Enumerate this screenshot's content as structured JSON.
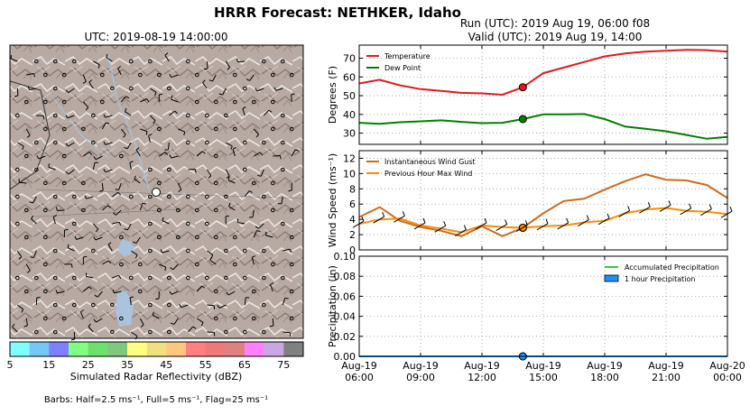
{
  "header": {
    "title": "HRRR Forecast: NETHKER, Idaho",
    "run_line": "Run (UTC): 2019 Aug 19, 06:00 f08",
    "valid_line": "Valid (UTC): 2019 Aug 19, 14:00"
  },
  "map": {
    "title": "UTC: 2019-08-19 14:00:00",
    "colorbar": {
      "label": "Simulated Radar Reflectivity (dBZ)",
      "ticks": [
        "5",
        "15",
        "25",
        "35",
        "45",
        "55",
        "65",
        "75"
      ],
      "colors": [
        "#80ffff",
        "#75c8f5",
        "#8080ff",
        "#80ff80",
        "#6ce26c",
        "#80c880",
        "#ffff80",
        "#f0e080",
        "#ffc880",
        "#ff8080",
        "#f07878",
        "#e08080",
        "#ff80ff",
        "#c8a8e0",
        "#808080"
      ]
    },
    "barbs_note": "Barbs: Half=2.5 ms⁻¹, Full=5 ms⁻¹, Flag=25 ms⁻¹"
  },
  "chart_data": [
    {
      "type": "line",
      "ylabel": "Degrees (F)",
      "ylim": [
        24,
        77
      ],
      "yticks": [
        30,
        40,
        50,
        60,
        70
      ],
      "grid": true,
      "legend": "top-left",
      "x_hours": [
        0,
        1,
        2,
        3,
        4,
        5,
        6,
        7,
        8,
        9,
        10,
        11,
        12,
        13,
        14,
        15,
        16,
        17,
        18
      ],
      "series": [
        {
          "name": "Temperature",
          "color": "#e31a1c",
          "values": [
            56.5,
            58.5,
            55.5,
            53.5,
            52.5,
            51.5,
            51.2,
            50.5,
            54.5,
            62,
            65,
            68,
            71,
            72.5,
            73.5,
            74,
            74.5,
            74.3,
            73.5
          ]
        },
        {
          "name": "Dew Point",
          "color": "#008000",
          "values": [
            35.5,
            35,
            35.8,
            36.3,
            36.8,
            36,
            35.3,
            35.5,
            37.5,
            40,
            40,
            40.2,
            37.5,
            33.5,
            32.3,
            31,
            29,
            27,
            28
          ]
        }
      ],
      "marker": {
        "x_hour": 8
      }
    },
    {
      "type": "line",
      "ylabel": "Wind Speed (ms⁻¹)",
      "ylim": [
        0,
        13
      ],
      "yticks": [
        0,
        2,
        4,
        6,
        8,
        10,
        12
      ],
      "grid": true,
      "legend": "top-left",
      "x_hours": [
        0,
        1,
        2,
        3,
        4,
        5,
        6,
        7,
        8,
        9,
        10,
        11,
        12,
        13,
        14,
        15,
        16,
        17,
        18
      ],
      "series": [
        {
          "name": "Instantaneous Wind Gust",
          "color": "#d2691e",
          "values": [
            4.3,
            5.6,
            3.8,
            3,
            2.5,
            1.8,
            3.1,
            1.8,
            2.9,
            4.8,
            6.4,
            6.7,
            7.9,
            9,
            9.9,
            9.2,
            9.1,
            8.5,
            6.8
          ]
        },
        {
          "name": "Previous Hour Max Wind",
          "color": "#ff8c00",
          "values": [
            3.4,
            4,
            4.1,
            3.2,
            2.8,
            2.3,
            3.2,
            3,
            2.9,
            3.1,
            3.2,
            3.6,
            3.8,
            4.8,
            5.3,
            5.5,
            5.1,
            5,
            4.7
          ]
        }
      ],
      "marker": {
        "x_hour": 8
      }
    },
    {
      "type": "area",
      "ylabel": "Precipitation (in)",
      "ylim": [
        0,
        0.1
      ],
      "yticks": [
        "0.00",
        "0.02",
        "0.04",
        "0.06",
        "0.08",
        "0.10"
      ],
      "grid": true,
      "legend": "top-right",
      "x_hours": [
        0,
        1,
        2,
        3,
        4,
        5,
        6,
        7,
        8,
        9,
        10,
        11,
        12,
        13,
        14,
        15,
        16,
        17,
        18
      ],
      "series": [
        {
          "name": "Accumulated Precipitation",
          "color": "#32cd32",
          "values": [
            0,
            0,
            0,
            0,
            0,
            0,
            0,
            0,
            0,
            0,
            0,
            0,
            0,
            0,
            0,
            0,
            0,
            0,
            0
          ]
        },
        {
          "name": "1 hour Precipitation",
          "color": "#1e90ff",
          "values": [
            0,
            0,
            0,
            0,
            0,
            0,
            0,
            0,
            0,
            0,
            0,
            0,
            0,
            0,
            0,
            0,
            0,
            0,
            0
          ]
        }
      ],
      "marker": {
        "x_hour": 8
      }
    }
  ],
  "xaxis": {
    "tick_hours": [
      0,
      3,
      6,
      9,
      12,
      15,
      18
    ],
    "tick_labels": [
      [
        "Aug-19",
        "06:00"
      ],
      [
        "Aug-19",
        "09:00"
      ],
      [
        "Aug-19",
        "12:00"
      ],
      [
        "Aug-19",
        "15:00"
      ],
      [
        "Aug-19",
        "18:00"
      ],
      [
        "Aug-19",
        "21:00"
      ],
      [
        "Aug-20",
        "00:00"
      ]
    ]
  }
}
